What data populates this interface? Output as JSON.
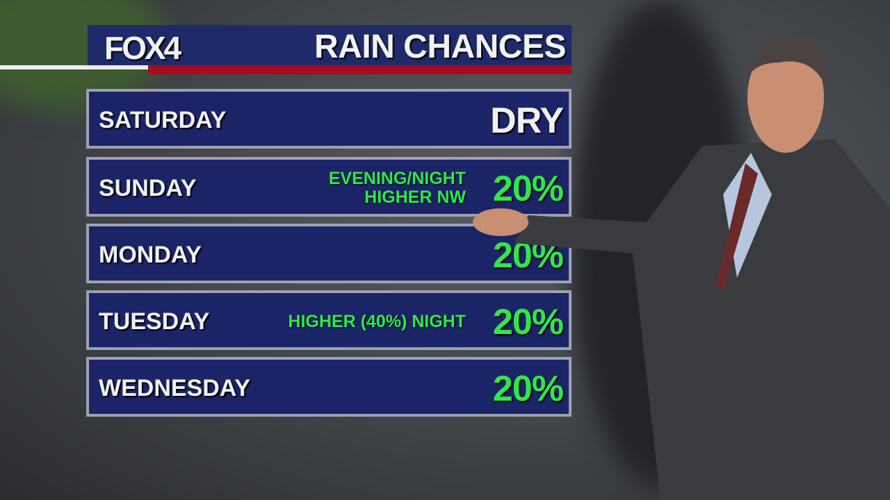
{
  "header": {
    "logo": "FOX4",
    "title": "RAIN CHANCES"
  },
  "rows": [
    {
      "day": "SATURDAY",
      "note": "",
      "note2": "",
      "value": "DRY"
    },
    {
      "day": "SUNDAY",
      "note": "EVENING/NIGHT",
      "note2": "HIGHER NW",
      "value": "20%"
    },
    {
      "day": "MONDAY",
      "note": "",
      "note2": "",
      "value": "20%"
    },
    {
      "day": "TUESDAY",
      "note": "HIGHER (40%) NIGHT",
      "note2": "",
      "value": "20%"
    },
    {
      "day": "WEDNESDAY",
      "note": "",
      "note2": "",
      "value": "20%"
    }
  ],
  "colors": {
    "panel": "#1c2468",
    "header": "#1f2a6b",
    "accent_red": "#a50e1c",
    "percent_green": "#2ee84a"
  }
}
